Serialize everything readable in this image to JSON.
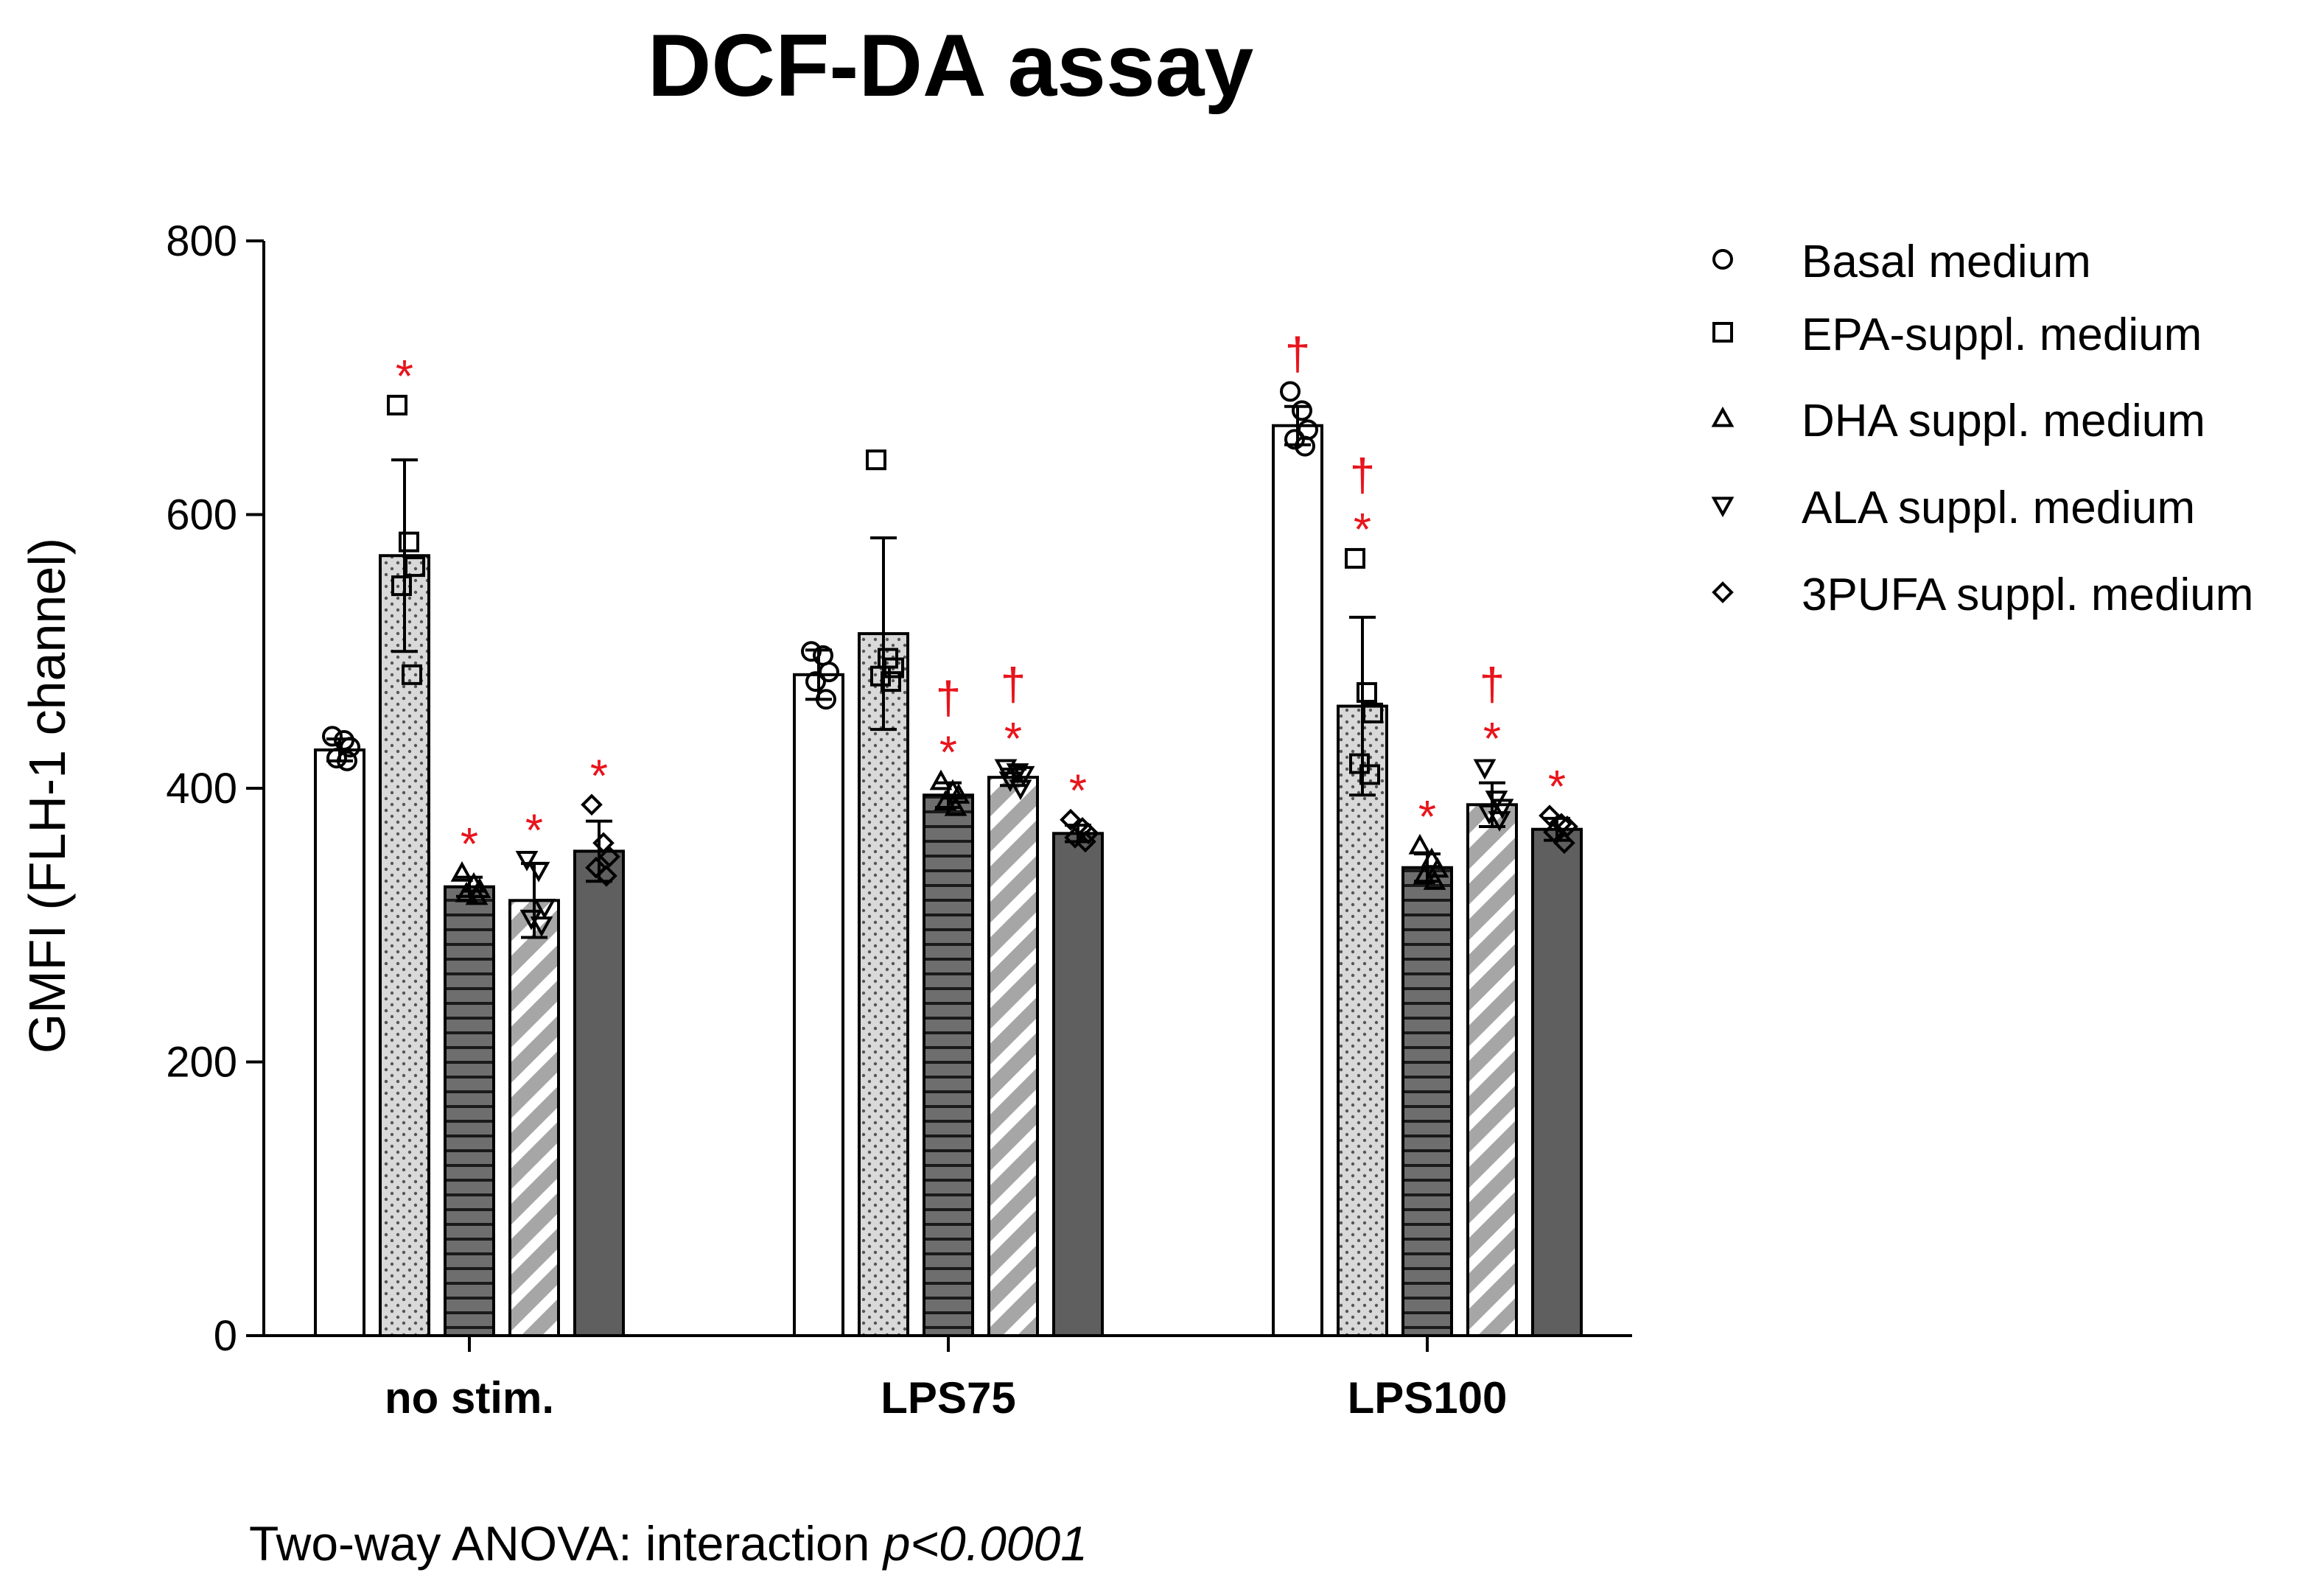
{
  "chart_data": {
    "type": "bar",
    "title": "DCF-DA assay",
    "xlabel": "",
    "ylabel": "GMFI (FLH-1 channel)",
    "ylim": [
      0,
      800
    ],
    "yticks": [
      0,
      200,
      400,
      600,
      800
    ],
    "categories": [
      "no stim.",
      "LPS75",
      "LPS100"
    ],
    "series": [
      {
        "name": "Basal medium",
        "marker": "circle",
        "pattern": "white",
        "values": [
          428,
          483,
          665
        ],
        "errors": [
          8,
          18,
          14
        ],
        "points": [
          [
            438,
            435,
            430,
            422,
            420
          ],
          [
            500,
            497,
            485,
            478,
            465
          ],
          [
            690,
            676,
            662,
            655,
            650
          ]
        ],
        "marks": [
          [],
          [],
          [
            "†"
          ]
        ]
      },
      {
        "name": "EPA-suppl. medium",
        "marker": "square",
        "pattern": "dots",
        "values": [
          570,
          513,
          460
        ],
        "errors": [
          70,
          70,
          65
        ],
        "points": [
          [
            680,
            580,
            562,
            548,
            483
          ],
          [
            640,
            495,
            488,
            482,
            478
          ],
          [
            568,
            470,
            455,
            418,
            410
          ]
        ],
        "marks": [
          [
            "*"
          ],
          [],
          [
            "*",
            "†"
          ]
        ]
      },
      {
        "name": "DHA suppl. medium",
        "marker": "triangle-up",
        "pattern": "hlines",
        "values": [
          328,
          395,
          342
        ],
        "errors": [
          7,
          9,
          10
        ],
        "points": [
          [
            338,
            330,
            326,
            323,
            321
          ],
          [
            405,
            398,
            395,
            390,
            386
          ],
          [
            358,
            348,
            341,
            336,
            332
          ]
        ],
        "marks": [
          [
            "*"
          ],
          [
            "*",
            "†"
          ],
          [
            "*"
          ]
        ]
      },
      {
        "name": "ALA suppl. medium",
        "marker": "triangle-down",
        "pattern": "diagonal",
        "values": [
          318,
          408,
          388
        ],
        "errors": [
          27,
          6,
          16
        ],
        "points": [
          [
            348,
            340,
            313,
            305,
            300
          ],
          [
            415,
            412,
            410,
            406,
            400
          ],
          [
            415,
            392,
            386,
            382,
            377
          ]
        ],
        "marks": [
          [
            "*"
          ],
          [
            "*",
            "†"
          ],
          [
            "*",
            "†"
          ]
        ]
      },
      {
        "name": "3PUFA suppl. medium",
        "marker": "diamond",
        "pattern": "dark",
        "values": [
          354,
          367,
          370
        ],
        "errors": [
          22,
          6,
          8
        ],
        "points": [
          [
            388,
            360,
            350,
            342,
            336
          ],
          [
            377,
            371,
            367,
            364,
            361
          ],
          [
            380,
            374,
            372,
            368,
            360
          ]
        ],
        "marks": [
          [
            "*"
          ],
          [
            "*"
          ],
          [
            "*"
          ]
        ]
      }
    ],
    "legend_position": "right",
    "footnote_prefix": "Two-way ANOVA: interaction ",
    "footnote_italic": "p<0.0001"
  }
}
